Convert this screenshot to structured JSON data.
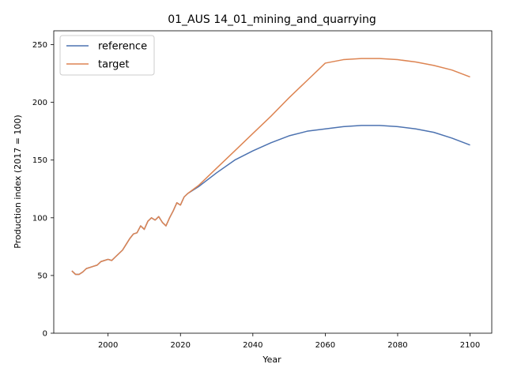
{
  "chart_data": {
    "type": "line",
    "title": "01_AUS 14_01_mining_and_quarrying",
    "xlabel": "Year",
    "ylabel": "Production index (2017 = 100)",
    "xlim": [
      1985,
      2106
    ],
    "ylim": [
      0,
      262
    ],
    "x_ticks": [
      2000,
      2020,
      2040,
      2060,
      2080,
      2100
    ],
    "y_ticks": [
      0,
      50,
      100,
      150,
      200,
      250
    ],
    "legend_position": "top-left",
    "grid": false,
    "historical": {
      "x": [
        1990,
        1991,
        1992,
        1993,
        1994,
        1995,
        1996,
        1997,
        1998,
        1999,
        2000,
        2001,
        2002,
        2003,
        2004,
        2005,
        2006,
        2007,
        2008,
        2009,
        2010,
        2011,
        2012,
        2013,
        2014,
        2015,
        2016,
        2017,
        2018,
        2019,
        2020,
        2021,
        2022
      ],
      "y": [
        54,
        51,
        51,
        53,
        56,
        57,
        58,
        59,
        62,
        63,
        64,
        63,
        66,
        69,
        72,
        77,
        82,
        86,
        87,
        93,
        90,
        97,
        100,
        98,
        101,
        96,
        93,
        100,
        106,
        113,
        111,
        118,
        121
      ]
    },
    "series": [
      {
        "name": "reference",
        "color": "#4c72b0",
        "x": [
          2022,
          2025,
          2030,
          2035,
          2040,
          2045,
          2050,
          2055,
          2060,
          2065,
          2070,
          2075,
          2080,
          2085,
          2090,
          2095,
          2100
        ],
        "y": [
          121,
          127,
          139,
          150,
          158,
          165,
          171,
          175,
          177,
          179,
          180,
          180,
          179,
          177,
          174,
          169,
          163
        ]
      },
      {
        "name": "target",
        "color": "#dd8452",
        "x": [
          2022,
          2025,
          2030,
          2035,
          2040,
          2045,
          2050,
          2055,
          2060,
          2065,
          2070,
          2075,
          2080,
          2085,
          2090,
          2095,
          2100
        ],
        "y": [
          121,
          128,
          143,
          158,
          173,
          188,
          204,
          219,
          234,
          237,
          238,
          238,
          237,
          235,
          232,
          228,
          222
        ]
      }
    ]
  }
}
